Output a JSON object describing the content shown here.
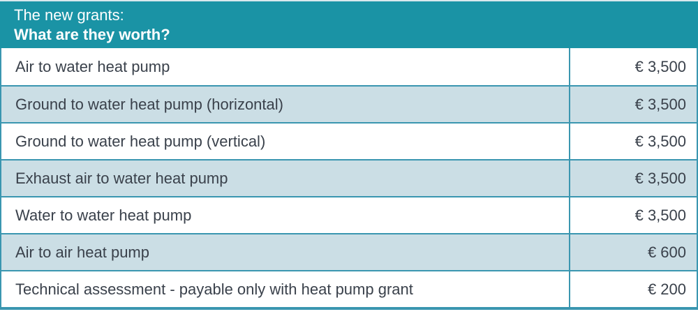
{
  "header": {
    "line1": "The new grants:",
    "line2": "What are they worth?"
  },
  "table": {
    "rows": [
      {
        "label": "Air to water heat pump",
        "value": "€ 3,500"
      },
      {
        "label": "Ground to water heat pump (horizontal)",
        "value": "€ 3,500"
      },
      {
        "label": "Ground to water heat pump (vertical)",
        "value": "€ 3,500"
      },
      {
        "label": "Exhaust air to water heat pump",
        "value": "€ 3,500"
      },
      {
        "label": "Water to water heat pump",
        "value": "€ 3,500"
      },
      {
        "label": "Air to air heat pump",
        "value": "€ 600"
      },
      {
        "label": "Technical assessment - payable only with heat pump grant",
        "value": "€ 200"
      }
    ]
  },
  "colors": {
    "header_bg": "#1A93A5",
    "header_text": "#FFFFFF",
    "row_bg": "#FFFFFF",
    "row_alt_bg": "#CBDEE5",
    "border": "#3A96B0",
    "text": "#3A414B"
  }
}
